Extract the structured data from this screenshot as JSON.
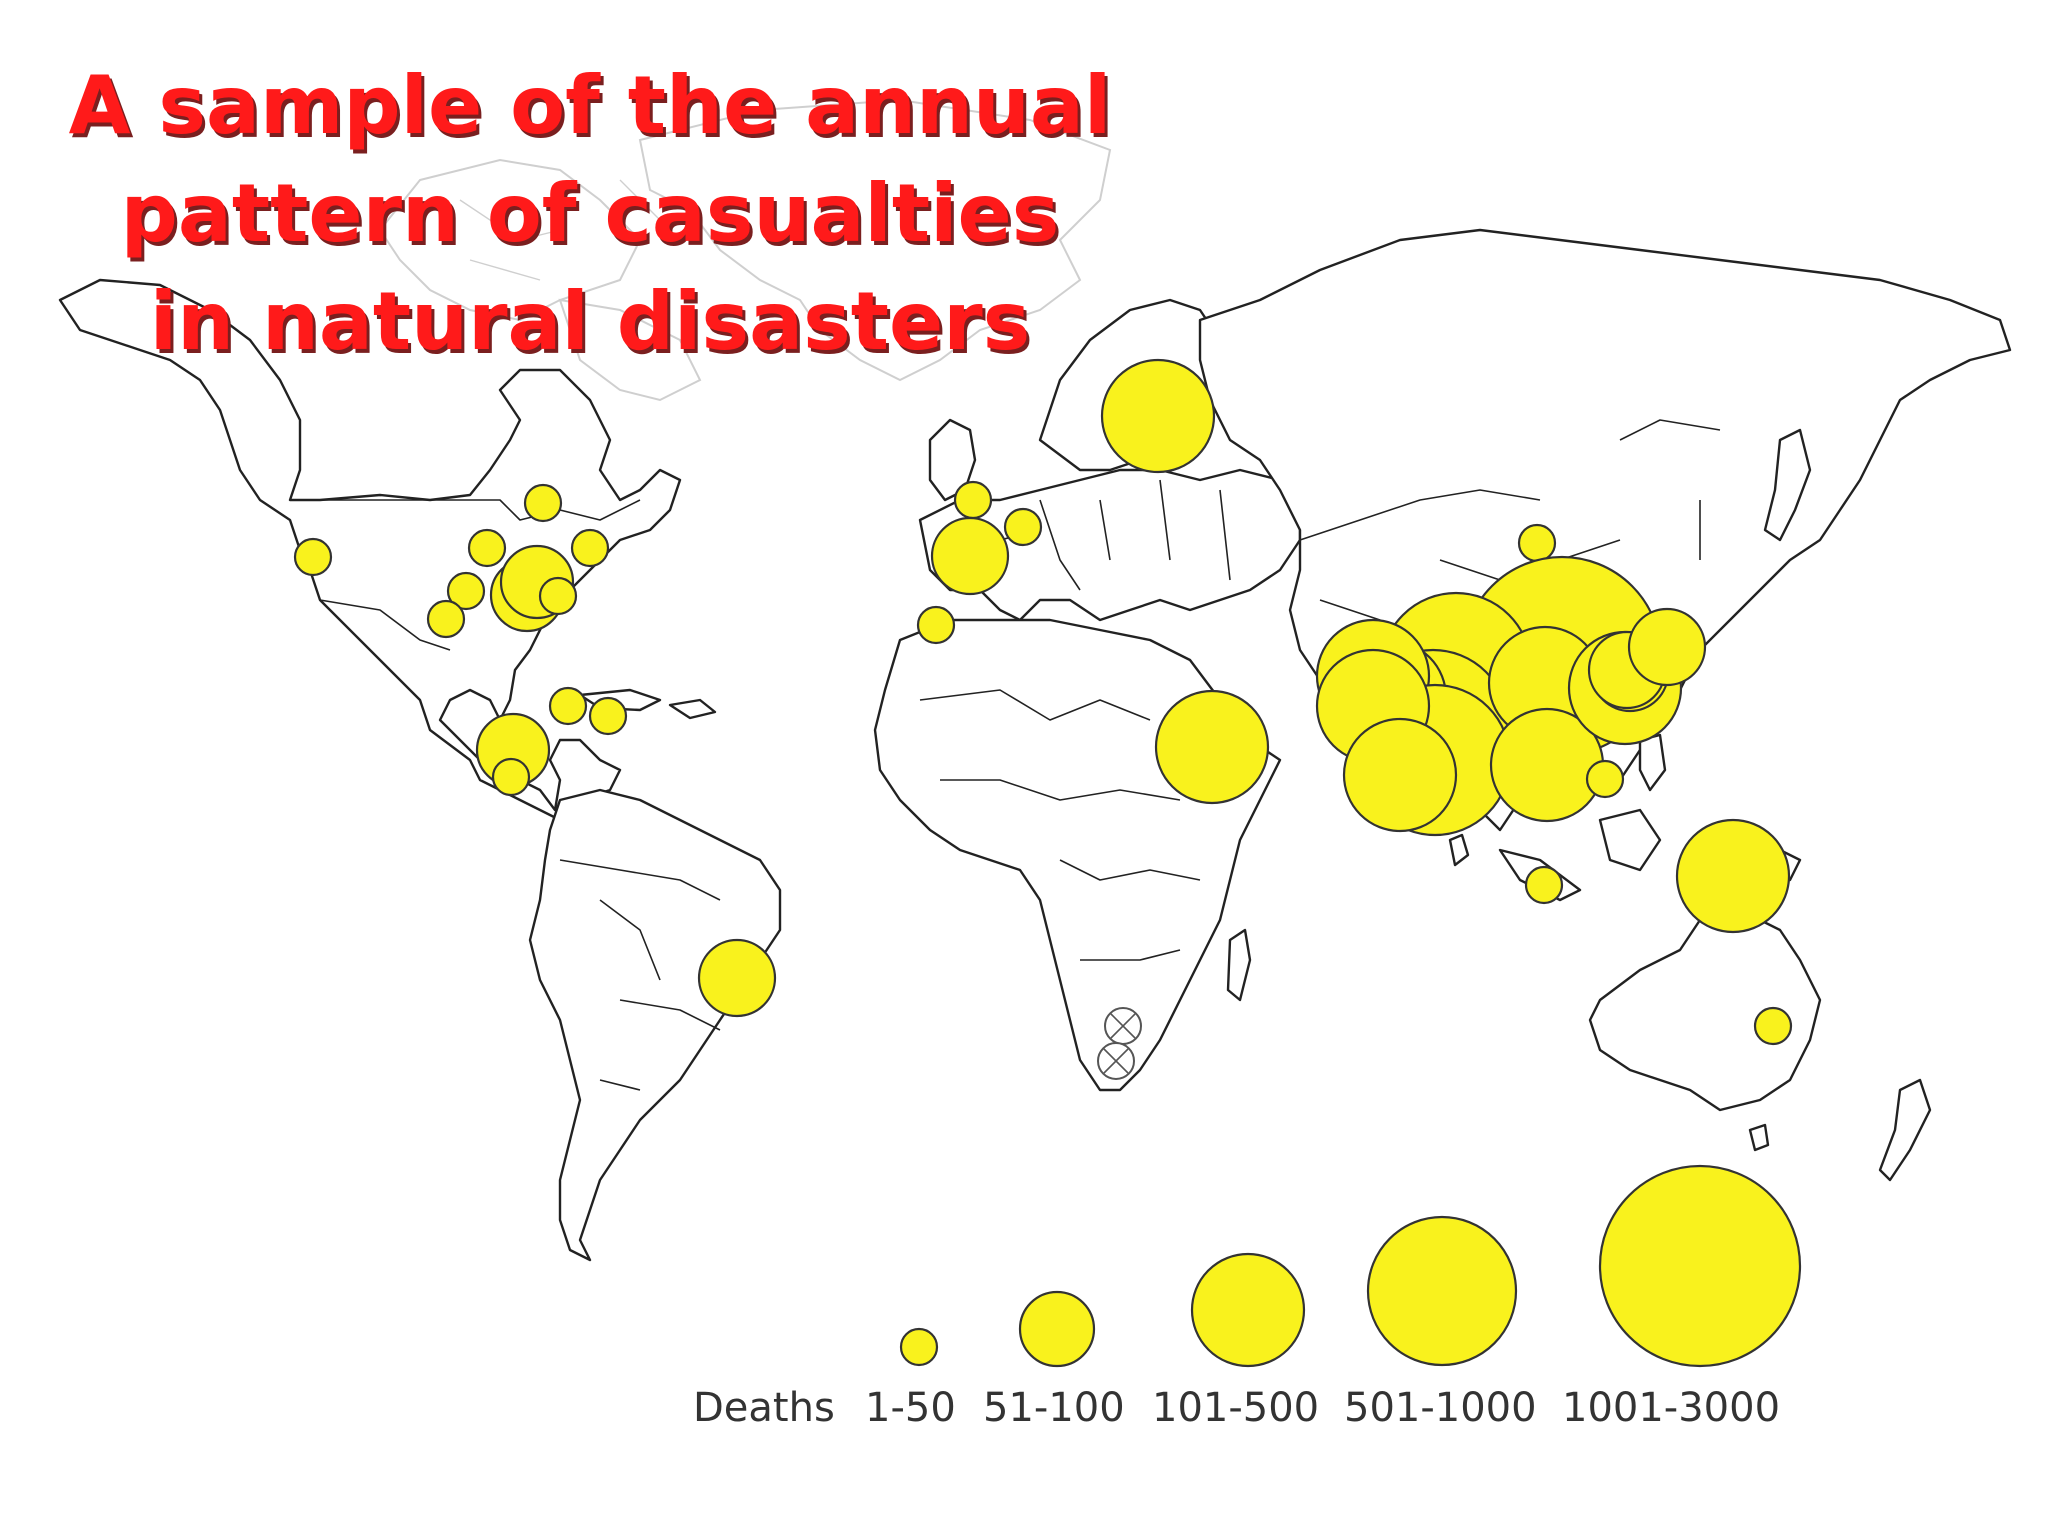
{
  "title": {
    "lines": [
      "A sample of the annual",
      "pattern of casualties",
      "in natural disasters"
    ]
  },
  "colors": {
    "title": "#ff1a1a",
    "bubble_fill": "#f9f21d",
    "bubble_stroke": "#333333",
    "land_outline": "#222222"
  },
  "legend": {
    "label": "Deaths",
    "categories": [
      "1-50",
      "51-100",
      "101-500",
      "501-1000",
      "1001-3000"
    ]
  },
  "chart_data": {
    "type": "scatter",
    "legend_label": "Deaths",
    "categories": [
      "1-50",
      "51-100",
      "101-500",
      "501-1000",
      "1001-3000"
    ],
    "events": [
      {
        "region": "Western United States",
        "category": "1-50"
      },
      {
        "region": "Great Lakes (Canada)",
        "category": "1-50"
      },
      {
        "region": "Midwest United States",
        "category": "1-50"
      },
      {
        "region": "Northeastern United States",
        "category": "1-50"
      },
      {
        "region": "Eastern United States",
        "category": "101-500"
      },
      {
        "region": "Eastern United States",
        "category": "101-500"
      },
      {
        "region": "Eastern United States",
        "category": "1-50"
      },
      {
        "region": "Southern United States",
        "category": "1-50"
      },
      {
        "region": "Southern United States",
        "category": "1-50"
      },
      {
        "region": "Cuba",
        "category": "1-50"
      },
      {
        "region": "Hispaniola",
        "category": "1-50"
      },
      {
        "region": "Central America",
        "category": "51-100"
      },
      {
        "region": "Central America",
        "category": "1-50"
      },
      {
        "region": "Brazil",
        "category": "51-100"
      },
      {
        "region": "United Kingdom",
        "category": "1-50"
      },
      {
        "region": "Iberia",
        "category": "51-100"
      },
      {
        "region": "Italy / Alps",
        "category": "1-50"
      },
      {
        "region": "Morocco",
        "category": "1-50"
      },
      {
        "region": "Russia (Moscow region)",
        "category": "101-500"
      },
      {
        "region": "Ethiopia / Horn of Africa",
        "category": "101-500"
      },
      {
        "region": "Southern Africa",
        "category": "none"
      },
      {
        "region": "Southern Africa",
        "category": "none"
      },
      {
        "region": "Northern China",
        "category": "1-50"
      },
      {
        "region": "China",
        "category": "1001-3000"
      },
      {
        "region": "Pakistan / Northern India",
        "category": "501-1000"
      },
      {
        "region": "India",
        "category": "501-1000"
      },
      {
        "region": "India",
        "category": "501-1000"
      },
      {
        "region": "Afghanistan / Pakistan",
        "category": "101-500"
      },
      {
        "region": "India",
        "category": "501-1000"
      },
      {
        "region": "Central India",
        "category": "101-500"
      },
      {
        "region": "Southern India",
        "category": "501-1000"
      },
      {
        "region": "Bangladesh / Myanmar",
        "category": "101-500"
      },
      {
        "region": "Indochina",
        "category": "101-500"
      },
      {
        "region": "Southern China",
        "category": "101-500"
      },
      {
        "region": "Southeast China",
        "category": "101-500"
      },
      {
        "region": "Taiwan / East China",
        "category": "51-100"
      },
      {
        "region": "Japan / Korea",
        "category": "51-100"
      },
      {
        "region": "Philippines",
        "category": "1-50"
      },
      {
        "region": "Indonesia (Java)",
        "category": "1-50"
      },
      {
        "region": "Papua New Guinea",
        "category": "101-500"
      },
      {
        "region": "Eastern Australia",
        "category": "1-50"
      }
    ]
  }
}
